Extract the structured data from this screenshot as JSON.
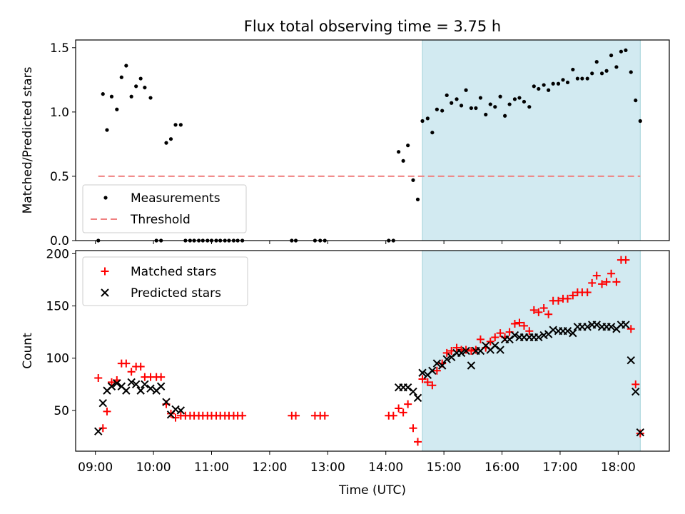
{
  "title": "Flux total observing time = 3.75 h",
  "colors": {
    "measure": "#000000",
    "threshold": "#f08080",
    "matched": "#ff0000",
    "predicted": "#000000",
    "shade": "#add8e6"
  },
  "chart_data": [
    {
      "type": "scatter",
      "ylabel": "Matched/Predicted stars",
      "ylim": [
        0,
        1.56
      ],
      "yticks": [
        "0.0",
        "0.5",
        "1.0",
        "1.5"
      ],
      "xlim": [
        8.66,
        18.88
      ],
      "xticks": [
        "09:00",
        "10:00",
        "11:00",
        "12:00",
        "13:00",
        "14:00",
        "15:00",
        "16:00",
        "17:00",
        "18:00"
      ],
      "legend_position": "lower-left",
      "legend": {
        "measurements": "Measurements",
        "threshold": "Threshold"
      },
      "threshold": {
        "y": 0.5,
        "x_range": [
          9.05,
          18.38
        ]
      },
      "shaded_x_range": [
        14.63,
        18.38
      ],
      "series": [
        {
          "name": "Measurements",
          "x": [
            9.05,
            9.13,
            9.2,
            9.28,
            9.37,
            9.45,
            9.53,
            9.62,
            9.7,
            9.78,
            9.85,
            9.95,
            10.05,
            10.13,
            10.22,
            10.3,
            10.38,
            10.47,
            10.55,
            10.63,
            10.7,
            10.78,
            10.85,
            10.93,
            11.0,
            11.08,
            11.15,
            11.23,
            11.3,
            11.38,
            11.45,
            11.53,
            12.38,
            12.45,
            12.78,
            12.87,
            12.95,
            14.05,
            14.13,
            14.22,
            14.3,
            14.38,
            14.47,
            14.55,
            14.63,
            14.72,
            14.8,
            14.88,
            14.97,
            15.05,
            15.13,
            15.22,
            15.3,
            15.38,
            15.47,
            15.55,
            15.63,
            15.72,
            15.8,
            15.88,
            15.97,
            16.05,
            16.13,
            16.22,
            16.3,
            16.38,
            16.47,
            16.55,
            16.63,
            16.72,
            16.8,
            16.88,
            16.97,
            17.05,
            17.13,
            17.22,
            17.3,
            17.38,
            17.47,
            17.55,
            17.63,
            17.72,
            17.8,
            17.88,
            17.97,
            18.05,
            18.13,
            18.22,
            18.3,
            18.38
          ],
          "y": [
            0.0,
            1.14,
            0.86,
            1.12,
            1.02,
            1.27,
            1.36,
            1.12,
            1.2,
            1.26,
            1.19,
            1.11,
            0.0,
            0.0,
            0.76,
            0.79,
            0.9,
            0.9,
            0.0,
            0.0,
            0.0,
            0.0,
            0.0,
            0.0,
            0.0,
            0.0,
            0.0,
            0.0,
            0.0,
            0.0,
            0.0,
            0.0,
            0.0,
            0.0,
            0.0,
            0.0,
            0.0,
            0.0,
            0.0,
            0.69,
            0.62,
            0.74,
            0.47,
            0.32,
            0.93,
            0.95,
            0.84,
            1.02,
            1.01,
            1.13,
            1.07,
            1.1,
            1.05,
            1.17,
            1.03,
            1.03,
            1.11,
            0.98,
            1.06,
            1.04,
            1.12,
            0.97,
            1.06,
            1.1,
            1.11,
            1.08,
            1.04,
            1.2,
            1.18,
            1.21,
            1.17,
            1.22,
            1.22,
            1.25,
            1.23,
            1.33,
            1.26,
            1.26,
            1.26,
            1.3,
            1.39,
            1.3,
            1.32,
            1.44,
            1.35,
            1.47,
            1.48,
            1.31,
            1.09,
            0.93
          ]
        }
      ]
    },
    {
      "type": "scatter",
      "xlabel": "Time (UTC)",
      "ylabel": "Count",
      "ylim": [
        11,
        203
      ],
      "yticks": [
        "50",
        "100",
        "150",
        "200"
      ],
      "xlim": [
        8.66,
        18.88
      ],
      "xticks": [
        "09:00",
        "10:00",
        "11:00",
        "12:00",
        "13:00",
        "14:00",
        "15:00",
        "16:00",
        "17:00",
        "18:00"
      ],
      "legend_position": "upper-left",
      "shaded_x_range": [
        14.63,
        18.38
      ],
      "series": [
        {
          "name": "Matched stars",
          "x": [
            9.05,
            9.13,
            9.2,
            9.28,
            9.37,
            9.45,
            9.53,
            9.62,
            9.7,
            9.78,
            9.85,
            9.95,
            10.05,
            10.13,
            10.22,
            10.3,
            10.38,
            10.47,
            10.55,
            10.63,
            10.7,
            10.78,
            10.85,
            10.93,
            11.0,
            11.08,
            11.15,
            11.23,
            11.3,
            11.38,
            11.45,
            11.53,
            12.38,
            12.45,
            12.78,
            12.87,
            12.95,
            14.05,
            14.13,
            14.22,
            14.3,
            14.38,
            14.47,
            14.55,
            14.63,
            14.72,
            14.8,
            14.88,
            14.97,
            15.05,
            15.13,
            15.22,
            15.3,
            15.38,
            15.47,
            15.55,
            15.63,
            15.72,
            15.8,
            15.88,
            15.97,
            16.05,
            16.13,
            16.22,
            16.3,
            16.38,
            16.47,
            16.55,
            16.63,
            16.72,
            16.8,
            16.88,
            16.97,
            17.05,
            17.13,
            17.22,
            17.3,
            17.38,
            17.47,
            17.55,
            17.63,
            17.72,
            17.8,
            17.88,
            17.97,
            18.05,
            18.13,
            18.22,
            18.3,
            18.38
          ],
          "y": [
            81,
            33,
            49,
            77,
            79,
            95,
            95,
            87,
            92,
            92,
            82,
            82,
            82,
            82,
            56,
            47,
            43,
            45,
            45,
            45,
            45,
            45,
            45,
            45,
            45,
            45,
            45,
            45,
            45,
            45,
            45,
            45,
            45,
            45,
            45,
            45,
            45,
            45,
            45,
            52,
            48,
            56,
            33,
            20,
            80,
            77,
            74,
            88,
            95,
            105,
            107,
            110,
            108,
            108,
            107,
            108,
            118,
            110,
            116,
            120,
            124,
            120,
            125,
            133,
            134,
            131,
            126,
            146,
            144,
            148,
            142,
            155,
            155,
            157,
            157,
            160,
            163,
            163,
            163,
            172,
            179,
            171,
            173,
            181,
            173,
            194,
            194,
            128,
            75,
            28
          ]
        },
        {
          "name": "Predicted stars",
          "x": [
            9.05,
            9.13,
            9.2,
            9.28,
            9.37,
            9.45,
            9.53,
            9.62,
            9.7,
            9.78,
            9.85,
            9.95,
            10.05,
            10.13,
            10.22,
            10.3,
            10.38,
            10.47,
            14.22,
            14.3,
            14.38,
            14.47,
            14.55,
            14.63,
            14.72,
            14.8,
            14.88,
            14.97,
            15.05,
            15.13,
            15.22,
            15.3,
            15.38,
            15.47,
            15.55,
            15.63,
            15.72,
            15.8,
            15.88,
            15.97,
            16.05,
            16.13,
            16.22,
            16.3,
            16.38,
            16.47,
            16.55,
            16.63,
            16.72,
            16.8,
            16.88,
            16.97,
            17.05,
            17.13,
            17.22,
            17.3,
            17.38,
            17.47,
            17.55,
            17.63,
            17.72,
            17.8,
            17.88,
            17.97,
            18.05,
            18.13,
            18.22,
            18.3,
            18.38
          ],
          "y": [
            30,
            57,
            69,
            73,
            76,
            73,
            69,
            77,
            75,
            69,
            75,
            71,
            69,
            73,
            58,
            46,
            51,
            50,
            72,
            72,
            72,
            68,
            62,
            86,
            84,
            88,
            95,
            93,
            99,
            101,
            105,
            105,
            107,
            93,
            107,
            107,
            112,
            108,
            112,
            108,
            118,
            118,
            122,
            120,
            120,
            120,
            120,
            120,
            122,
            123,
            127,
            126,
            126,
            126,
            124,
            130,
            130,
            130,
            132,
            132,
            130,
            130,
            130,
            128,
            132,
            132,
            98,
            68,
            29
          ]
        }
      ]
    }
  ]
}
